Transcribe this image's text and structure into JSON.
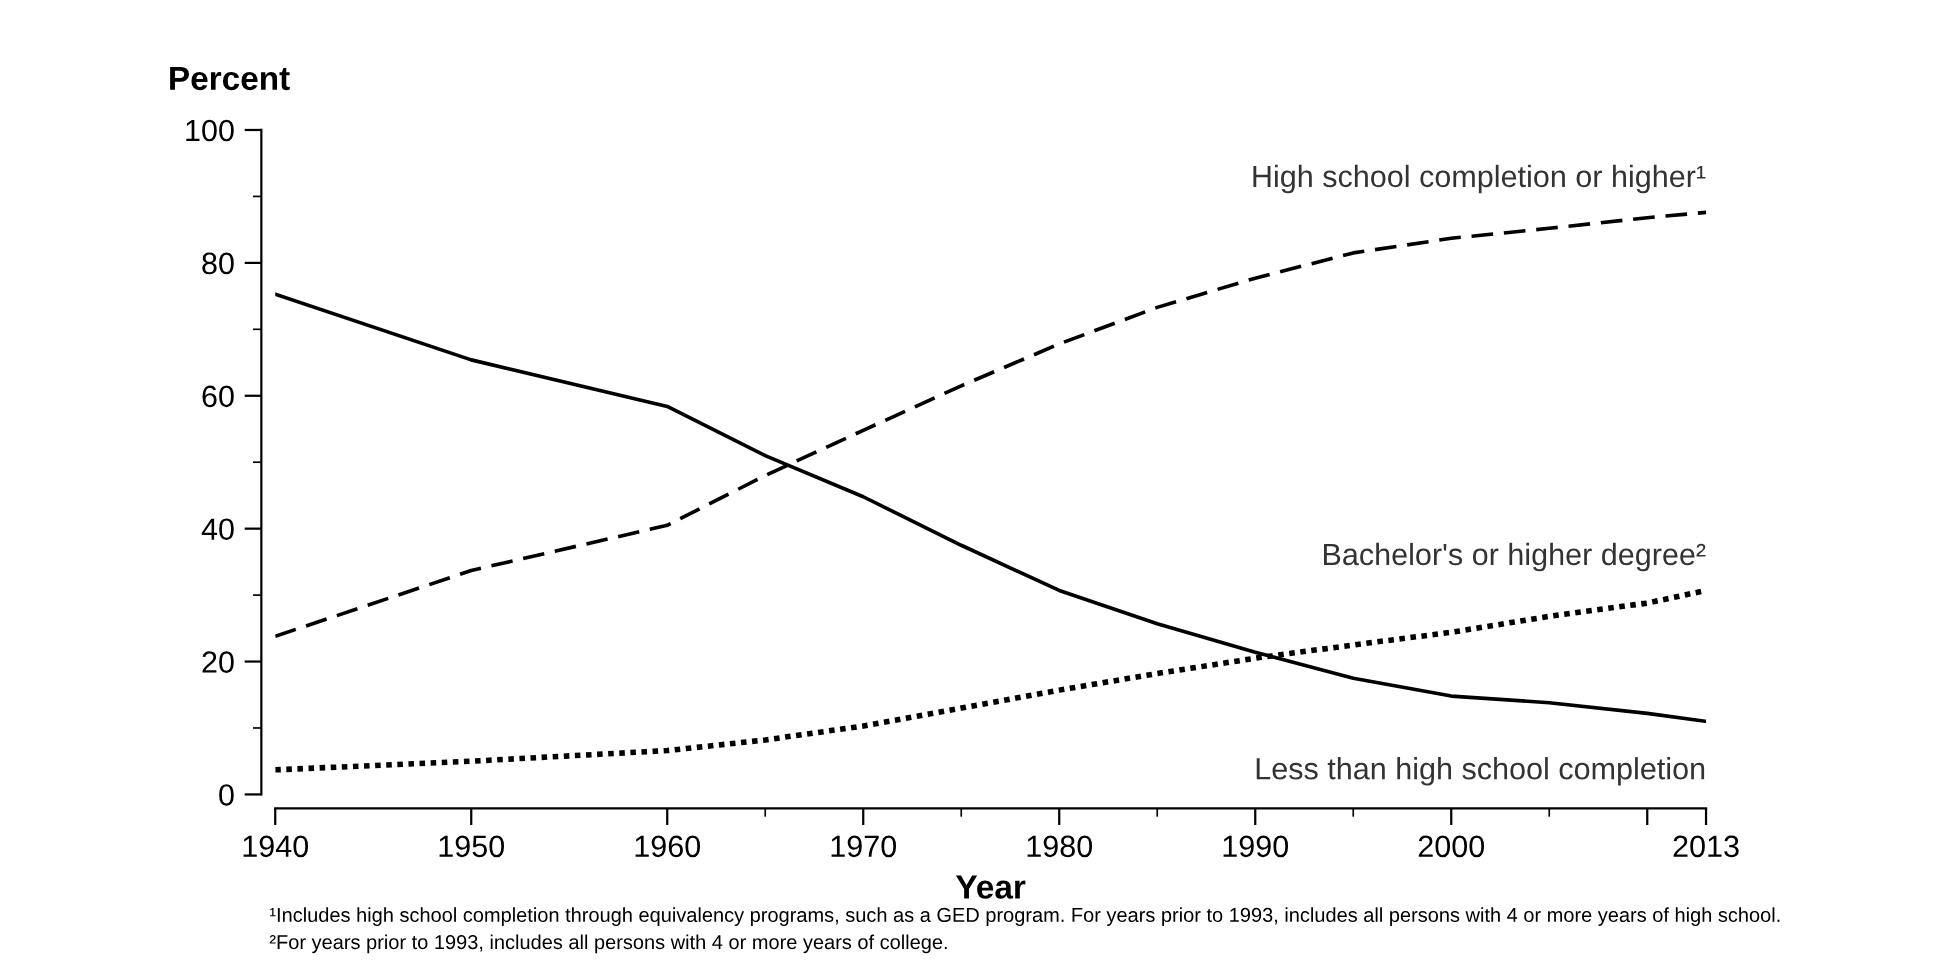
{
  "chart_data": {
    "type": "line",
    "ylabel": "Percent",
    "xlabel": "Year",
    "xlim": [
      1940,
      2013
    ],
    "xticks": [
      1940,
      1950,
      1960,
      1970,
      1980,
      1990,
      2000,
      {
        "value": 2010,
        "label": null
      },
      2013
    ],
    "ylim": [
      0,
      100
    ],
    "yticks": [
      0,
      20,
      40,
      60,
      80,
      100
    ],
    "grid": false,
    "legend": false,
    "marker": "none",
    "series": [
      {
        "name": "High school completion or higher¹",
        "color": "#000000",
        "line_style": "dashed",
        "x": [
          1940,
          1950,
          1960,
          1965,
          1970,
          1975,
          1980,
          1985,
          1990,
          1995,
          2000,
          2005,
          2010,
          2013
        ],
        "values": [
          23.8,
          33.7,
          40.5,
          48,
          54.8,
          61.5,
          67.8,
          73.3,
          77.7,
          81.5,
          83.7,
          85.2,
          86.8,
          87.6
        ]
      },
      {
        "name": "Bachelor's or higher degree²",
        "color": "#000000",
        "line_style": "dotted",
        "x": [
          1940,
          1950,
          1960,
          1965,
          1970,
          1975,
          1980,
          1985,
          1990,
          1995,
          2000,
          2005,
          2010,
          2013
        ],
        "values": [
          3.7,
          5.0,
          6.6,
          8.2,
          10.3,
          13.0,
          15.7,
          18.2,
          20.5,
          22.5,
          24.4,
          26.8,
          28.8,
          30.7
        ]
      },
      {
        "name": "Less than high school completion",
        "color": "#000000",
        "line_style": "solid",
        "x": [
          1940,
          1950,
          1960,
          1965,
          1970,
          1975,
          1980,
          1985,
          1990,
          1995,
          2000,
          2005,
          2010,
          2013
        ],
        "values": [
          75.3,
          65.4,
          58.4,
          51.0,
          44.8,
          37.5,
          30.7,
          25.7,
          21.4,
          17.5,
          14.8,
          13.8,
          12.2,
          11.0
        ]
      }
    ],
    "annotations": [
      "¹Includes high school completion through equivalency programs, such as a GED program. For years prior to 1993, includes all persons with 4 or more years of high school.",
      "²For years prior to 1993, includes all persons with 4 or more years of college."
    ]
  }
}
